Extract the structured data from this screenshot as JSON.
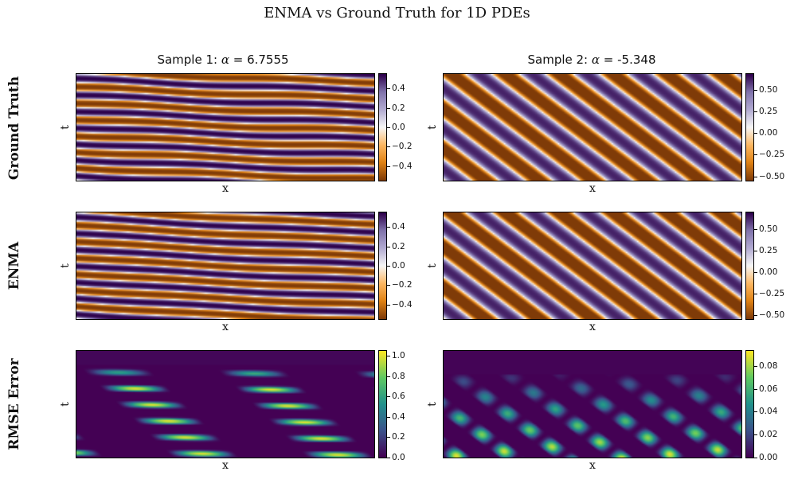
{
  "figure": {
    "title": "ENMA vs Ground Truth for 1D PDEs",
    "row_labels": [
      "Ground Truth",
      "ENMA",
      "RMSE Error"
    ],
    "columns": [
      {
        "prefix": "Sample 1: ",
        "symbol": "α",
        "suffix": " = 6.7555"
      },
      {
        "prefix": "Sample 2: ",
        "symbol": "α",
        "suffix": " = -5.348"
      }
    ],
    "xlabel": "x",
    "ylabel": "t"
  },
  "colormaps": {
    "diverging": [
      "#7f3b08",
      "#e08214",
      "#fdb863",
      "#f7f7f7",
      "#b2abd2",
      "#8073ac",
      "#2d004b"
    ],
    "sequential": [
      "#440154",
      "#3b528b",
      "#21918c",
      "#5ec962",
      "#fde725"
    ]
  },
  "chart_data": [
    {
      "type": "heatmap",
      "name": "gt-sample-1",
      "row": "Ground Truth",
      "column": 1,
      "xlabel": "x",
      "ylabel": "t",
      "colormap": "diverging",
      "vmin": -0.55,
      "vmax": 0.55,
      "colorbar_ticks": [
        -0.4,
        -0.2,
        0.0,
        0.2,
        0.4
      ],
      "colorbar_labels": [
        "−0.4",
        "−0.2",
        "0.0",
        "0.2",
        "0.4"
      ],
      "field": {
        "kind": "wave",
        "freq_t": 6.5,
        "freq_x": 0.7,
        "drift": 0.35,
        "amp": 0.55,
        "wobble": 0.35
      }
    },
    {
      "type": "heatmap",
      "name": "gt-sample-2",
      "row": "Ground Truth",
      "column": 2,
      "xlabel": "x",
      "ylabel": "t",
      "colormap": "diverging",
      "vmin": -0.55,
      "vmax": 0.68,
      "colorbar_ticks": [
        -0.5,
        -0.25,
        0.0,
        0.25,
        0.5
      ],
      "colorbar_labels": [
        "−0.50",
        "−0.25",
        "0.00",
        "0.25",
        "0.50"
      ],
      "field": {
        "kind": "wave",
        "freq_t": 2.6,
        "freq_x": 5.5,
        "drift": 0.0,
        "amp": 0.62,
        "wobble": 0.0
      }
    },
    {
      "type": "heatmap",
      "name": "enma-sample-1",
      "row": "ENMA",
      "column": 1,
      "xlabel": "x",
      "ylabel": "t",
      "colormap": "diverging",
      "vmin": -0.55,
      "vmax": 0.55,
      "colorbar_ticks": [
        -0.4,
        -0.2,
        0.0,
        0.2,
        0.4
      ],
      "colorbar_labels": [
        "−0.4",
        "−0.2",
        "0.0",
        "0.2",
        "0.4"
      ],
      "field": {
        "kind": "wave",
        "freq_t": 6.5,
        "freq_x": 0.9,
        "drift": 0.5,
        "amp": 0.55,
        "wobble": 0.2
      }
    },
    {
      "type": "heatmap",
      "name": "enma-sample-2",
      "row": "ENMA",
      "column": 2,
      "xlabel": "x",
      "ylabel": "t",
      "colormap": "diverging",
      "vmin": -0.55,
      "vmax": 0.7,
      "colorbar_ticks": [
        -0.5,
        -0.25,
        0.0,
        0.25,
        0.5
      ],
      "colorbar_labels": [
        "−0.50",
        "−0.25",
        "0.00",
        "0.25",
        "0.50"
      ],
      "field": {
        "kind": "wave",
        "freq_t": 2.6,
        "freq_x": 5.5,
        "drift": 0.0,
        "amp": 0.64,
        "wobble": 0.0
      }
    },
    {
      "type": "heatmap",
      "name": "rmse-sample-1",
      "row": "RMSE Error",
      "column": 1,
      "xlabel": "x",
      "ylabel": "t",
      "colormap": "sequential",
      "vmin": 0.0,
      "vmax": 1.05,
      "colorbar_ticks": [
        0.0,
        0.2,
        0.4,
        0.6,
        0.8,
        1.0
      ],
      "colorbar_labels": [
        "0.0",
        "0.2",
        "0.4",
        "0.6",
        "0.8",
        "1.0"
      ],
      "field": {
        "kind": "error",
        "amp": 1.02,
        "freq_t": 6.5,
        "freq_x": 2.2,
        "seed": 3
      }
    },
    {
      "type": "heatmap",
      "name": "rmse-sample-2",
      "row": "RMSE Error",
      "column": 2,
      "xlabel": "x",
      "ylabel": "t",
      "colormap": "sequential",
      "vmin": 0.0,
      "vmax": 0.093,
      "colorbar_ticks": [
        0.0,
        0.02,
        0.04,
        0.06,
        0.08
      ],
      "colorbar_labels": [
        "0.00",
        "0.02",
        "0.04",
        "0.06",
        "0.08"
      ],
      "field": {
        "kind": "error2",
        "amp": 0.09,
        "freq_t": 2.6,
        "freq_x": 5.5,
        "seed": 7
      }
    }
  ]
}
